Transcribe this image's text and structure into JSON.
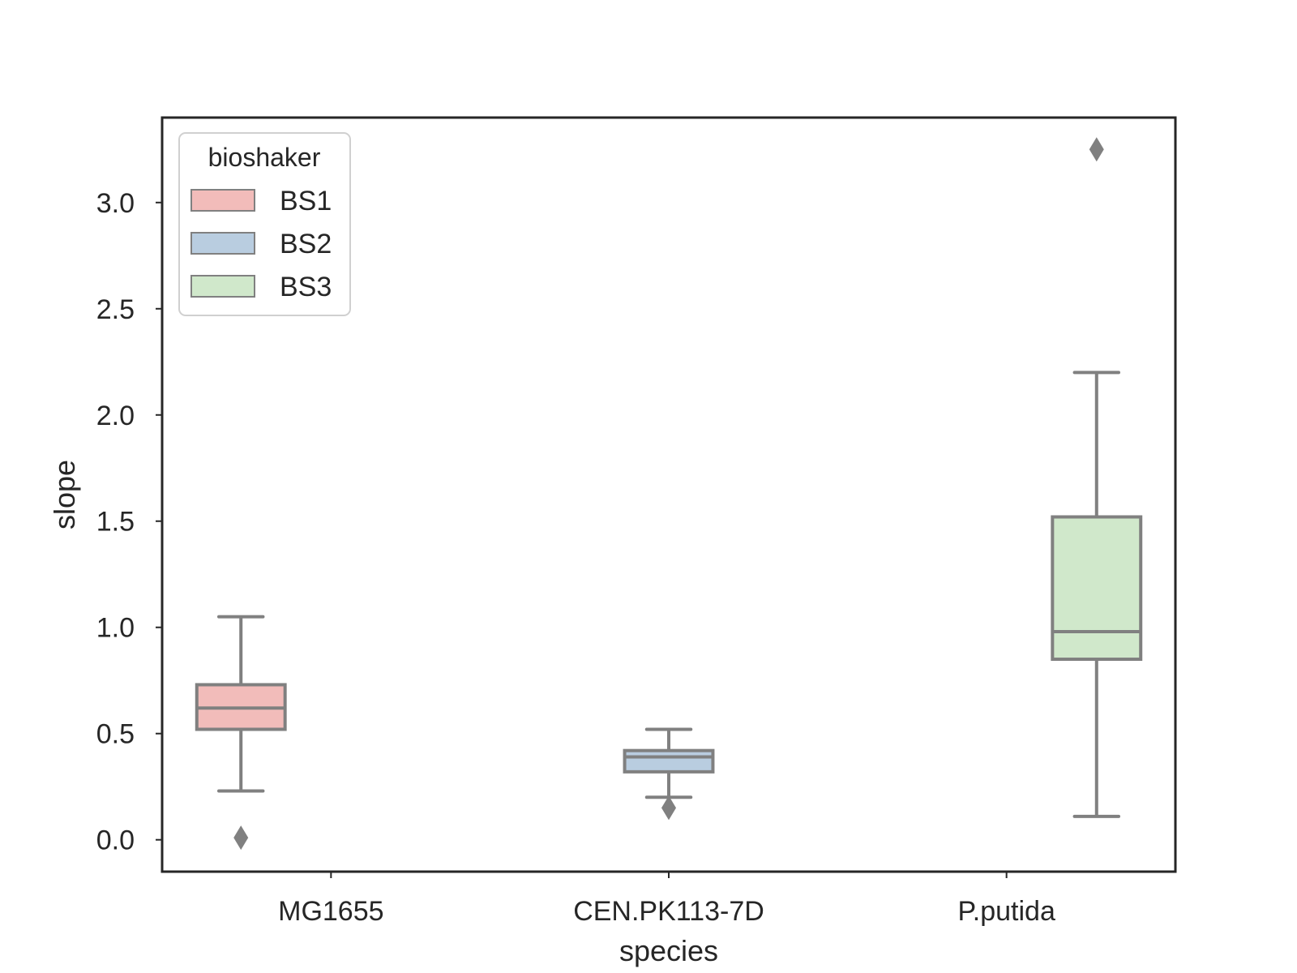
{
  "chart_data": {
    "type": "box",
    "xlabel": "species",
    "ylabel": "slope",
    "ylim": [
      -0.15,
      3.4
    ],
    "yticks": [
      0.0,
      0.5,
      1.0,
      1.5,
      2.0,
      2.5,
      3.0
    ],
    "ytick_labels": [
      "0.0",
      "0.5",
      "1.0",
      "1.5",
      "2.0",
      "2.5",
      "3.0"
    ],
    "categories": [
      "MG1655",
      "CEN.PK113-7D",
      "P.putida"
    ],
    "hue": [
      "BS1",
      "BS2",
      "BS3"
    ],
    "legend": {
      "title": "bioshaker",
      "placement": "upper-left",
      "entries": [
        {
          "label": "BS1",
          "color": "#f2bcba"
        },
        {
          "label": "BS2",
          "color": "#b9cde0"
        },
        {
          "label": "BS3",
          "color": "#d0e8cb"
        }
      ]
    },
    "grid": false,
    "line_color": "#808080",
    "boxes": [
      {
        "category": "MG1655",
        "hue": "BS1",
        "whisker_low": 0.23,
        "q1": 0.52,
        "median": 0.62,
        "q3": 0.73,
        "whisker_high": 1.05,
        "outliers": [
          0.01
        ]
      },
      {
        "category": "CEN.PK113-7D",
        "hue": "BS2",
        "whisker_low": 0.2,
        "q1": 0.32,
        "median": 0.39,
        "q3": 0.42,
        "whisker_high": 0.52,
        "outliers": [
          0.15
        ]
      },
      {
        "category": "P.putida",
        "hue": "BS3",
        "whisker_low": 0.11,
        "q1": 0.85,
        "median": 0.98,
        "q3": 1.52,
        "whisker_high": 2.2,
        "outliers": [
          3.25
        ]
      }
    ]
  }
}
